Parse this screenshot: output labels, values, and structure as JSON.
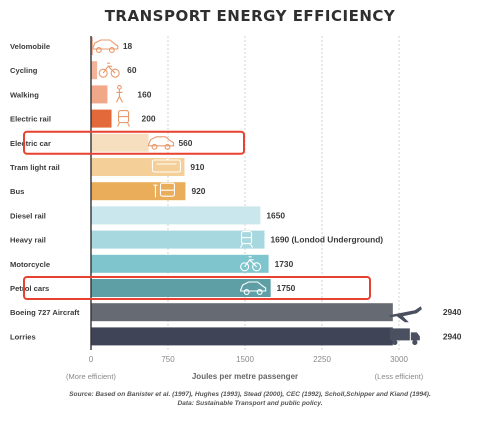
{
  "chart_data": {
    "type": "bar",
    "orientation": "horizontal",
    "title": "TRANSPORT ENERGY EFFICIENCY",
    "xlabel": "Joules per metre passenger",
    "xlim": [
      0,
      3000
    ],
    "x_ticks": [
      "0",
      "750",
      "1500",
      "2250",
      "3000"
    ],
    "left_note": "(More efficient)",
    "right_note": "(Less efficient)",
    "grid": true,
    "categories": [
      "Velomobile",
      "Cycling",
      "Walking",
      "Electric rail",
      "Electric car",
      "Tram light rail",
      "Bus",
      "Diesel rail",
      "Heavy rail",
      "Motorcycle",
      "Petrol cars",
      "Boeing 727 Aircraft",
      "Lorries"
    ],
    "values": [
      18,
      60,
      160,
      200,
      560,
      910,
      920,
      1650,
      1690,
      1730,
      1750,
      2940,
      2940
    ],
    "value_labels": [
      "18",
      "60",
      "160",
      "200",
      "560",
      "910",
      "920",
      "1650",
      "1690 (Londod Underground)",
      "1730",
      "1750",
      "2940",
      "2940"
    ],
    "bar_colors": [
      "#f2b7a0",
      "#f3b39b",
      "#f0a888",
      "#e3693a",
      "#f6dfbf",
      "#f4cf97",
      "#eaae5a",
      "#c9e7ec",
      "#a7d8df",
      "#7fc5ce",
      "#5e9fa6",
      "#666a73",
      "#3f4556"
    ],
    "icons": [
      "velomobile-icon",
      "bicycle-icon",
      "pedestrian-icon",
      "train-icon",
      "car-icon",
      "tram-icon",
      "bus-icon",
      "",
      "subway-icon",
      "motorcycle-icon",
      "car-icon",
      "airplane-icon",
      "truck-icon"
    ],
    "highlighted": [
      "Electric car",
      "Petrol cars"
    ],
    "highlight_color": "#e8412f"
  },
  "source": "Source: Based on Banister et al. (1997), Hughes (1993), Stead (2000), CEC (1992), Scholl,Schipper and Kiand (1994).",
  "data_note": "Data: Sustainable Transport and public policy."
}
